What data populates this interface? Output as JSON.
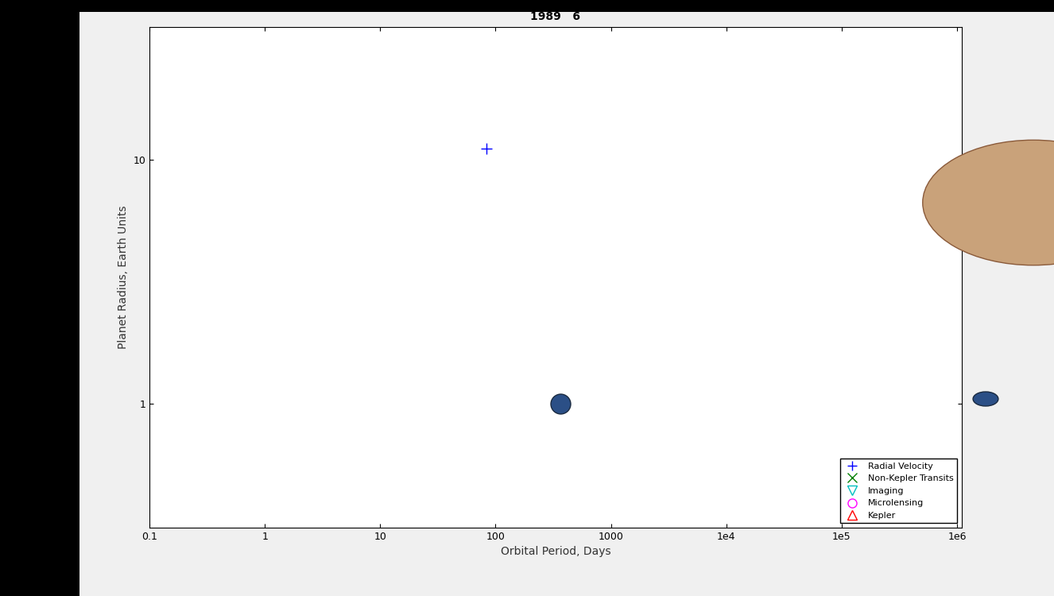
{
  "chart_data": {
    "type": "scatter",
    "title": "1989   6",
    "x_label": "Orbital Period, Days",
    "y_label": "Planet Radius, Earth Units",
    "log": true,
    "xlim": [
      0.1,
      1100000
    ],
    "xticks": [
      0.1,
      1,
      10,
      100,
      1000,
      {
        "value": 10000,
        "label": "1e4"
      },
      {
        "value": 100000,
        "label": "1e5"
      },
      {
        "value": 1000000,
        "label": "1e6"
      }
    ],
    "ylim": [
      0.31,
      35
    ],
    "yticks": [
      1,
      10
    ],
    "legend": "lower right",
    "series": [
      {
        "name": "Radial Velocity",
        "color": "#0000ff",
        "marker": "plus",
        "x": [
          84
        ],
        "values": [
          11.1
        ]
      },
      {
        "name": "Non-Kepler Transits",
        "color": "#008000",
        "marker": "x",
        "x": [],
        "values": []
      },
      {
        "name": "Imaging",
        "color": "#00bfbf",
        "marker": "triangle_down",
        "x": [],
        "values": []
      },
      {
        "name": "Microlensing",
        "color": "#ff00ff",
        "marker": "circle",
        "x": [],
        "values": []
      },
      {
        "name": "Kepler",
        "color": "#ff0000",
        "marker": "triangle_up",
        "x": [],
        "values": []
      }
    ],
    "reference_points": {
      "x": [
        365
      ],
      "values": [
        1
      ]
    }
  }
}
